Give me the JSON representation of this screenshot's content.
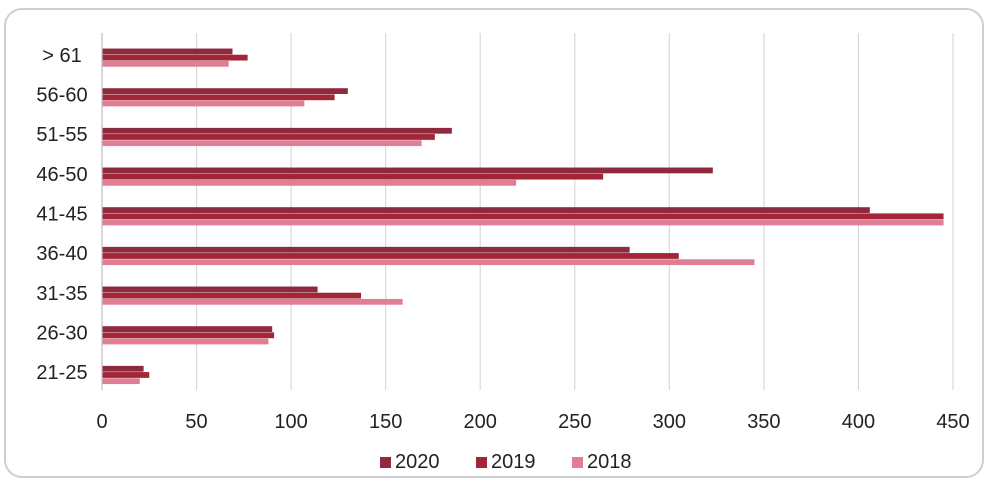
{
  "chart_data": {
    "type": "bar",
    "orientation": "horizontal",
    "categories": [
      "> 61",
      "56-60",
      "51-55",
      "46-50",
      "41-45",
      "36-40",
      "31-35",
      "26-30",
      "21-25"
    ],
    "series": [
      {
        "name": "2020",
        "color": "#8e2a3e",
        "values": [
          69,
          130,
          185,
          323,
          406,
          279,
          114,
          90,
          22
        ]
      },
      {
        "name": "2019",
        "color": "#a32638",
        "values": [
          77,
          123,
          176,
          265,
          445,
          305,
          137,
          91,
          25
        ]
      },
      {
        "name": "2018",
        "color": "#e07f93",
        "values": [
          67,
          107,
          169,
          219,
          445,
          345,
          159,
          88,
          20
        ]
      }
    ],
    "xlim": [
      0,
      450
    ],
    "xticks": [
      "0",
      "50",
      "100",
      "150",
      "200",
      "250",
      "300",
      "350",
      "400",
      "450"
    ],
    "grid": "vertical",
    "legend_position": "bottom"
  }
}
